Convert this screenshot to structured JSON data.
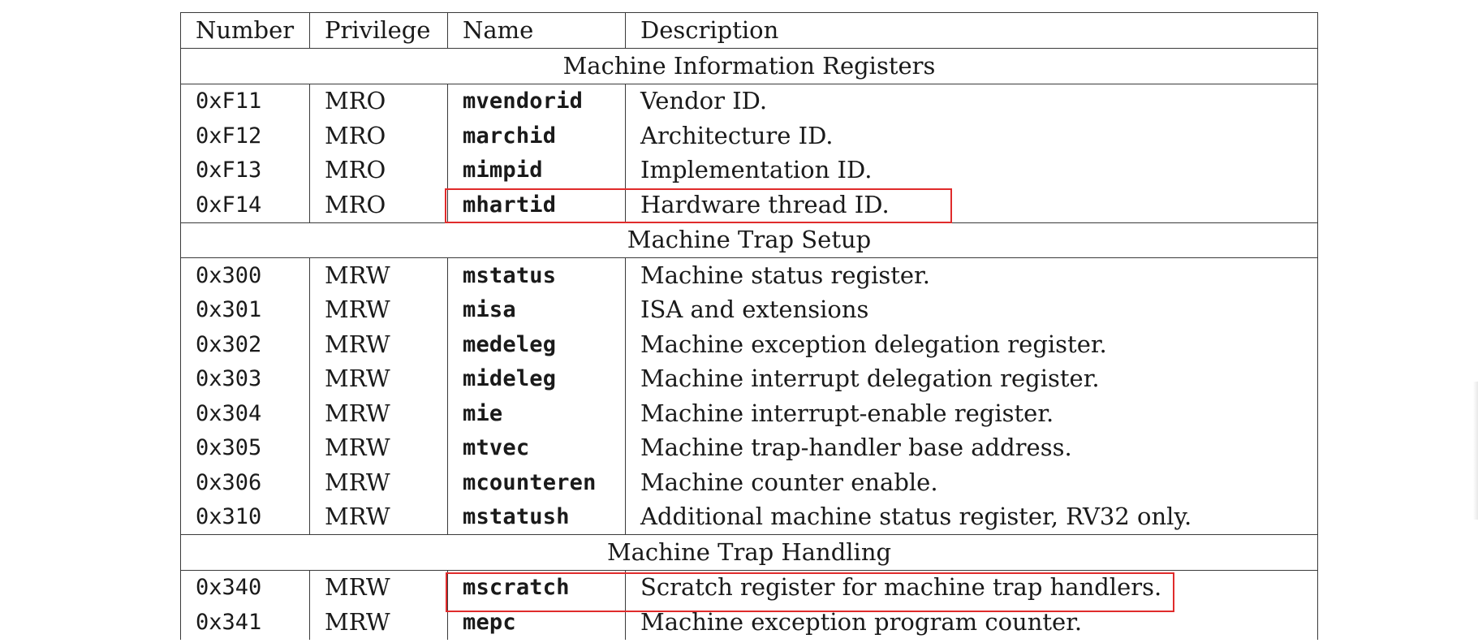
{
  "headers": {
    "number": "Number",
    "privilege": "Privilege",
    "name": "Name",
    "description": "Description"
  },
  "sections": [
    {
      "title": "Machine Information Registers",
      "rows": [
        {
          "number": "0xF11",
          "privilege": "MRO",
          "name": "mvendorid",
          "description": "Vendor ID.",
          "highlighted": false
        },
        {
          "number": "0xF12",
          "privilege": "MRO",
          "name": "marchid",
          "description": "Architecture ID.",
          "highlighted": false
        },
        {
          "number": "0xF13",
          "privilege": "MRO",
          "name": "mimpid",
          "description": "Implementation ID.",
          "highlighted": false
        },
        {
          "number": "0xF14",
          "privilege": "MRO",
          "name": "mhartid",
          "description": "Hardware thread ID.",
          "highlighted": true
        }
      ]
    },
    {
      "title": "Machine Trap Setup",
      "rows": [
        {
          "number": "0x300",
          "privilege": "MRW",
          "name": "mstatus",
          "description": "Machine status register.",
          "highlighted": false
        },
        {
          "number": "0x301",
          "privilege": "MRW",
          "name": "misa",
          "description": "ISA and extensions",
          "highlighted": false
        },
        {
          "number": "0x302",
          "privilege": "MRW",
          "name": "medeleg",
          "description": "Machine exception delegation register.",
          "highlighted": false
        },
        {
          "number": "0x303",
          "privilege": "MRW",
          "name": "mideleg",
          "description": "Machine interrupt delegation register.",
          "highlighted": false
        },
        {
          "number": "0x304",
          "privilege": "MRW",
          "name": "mie",
          "description": "Machine interrupt-enable register.",
          "highlighted": false
        },
        {
          "number": "0x305",
          "privilege": "MRW",
          "name": "mtvec",
          "description": "Machine trap-handler base address.",
          "highlighted": false
        },
        {
          "number": "0x306",
          "privilege": "MRW",
          "name": "mcounteren",
          "description": "Machine counter enable.",
          "highlighted": false
        },
        {
          "number": "0x310",
          "privilege": "MRW",
          "name": "mstatush",
          "description": "Additional machine status register, RV32 only.",
          "highlighted": false
        }
      ]
    },
    {
      "title": "Machine Trap Handling",
      "rows": [
        {
          "number": "0x340",
          "privilege": "MRW",
          "name": "mscratch",
          "description": "Scratch register for machine trap handlers.",
          "highlighted": true
        },
        {
          "number": "0x341",
          "privilege": "MRW",
          "name": "mepc",
          "description": "Machine exception program counter.",
          "highlighted": false
        }
      ]
    }
  ],
  "highlight_color": "#e02b2b"
}
